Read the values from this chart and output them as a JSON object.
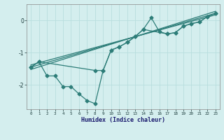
{
  "title": "",
  "xlabel": "Humidex (Indice chaleur)",
  "ylabel": "",
  "bg_color": "#d4eeee",
  "line_color": "#2d7d78",
  "grid_color": "#b8dede",
  "xlim": [
    -0.5,
    23.5
  ],
  "ylim": [
    -2.75,
    0.5
  ],
  "yticks": [
    -2,
    -1,
    0
  ],
  "xticks": [
    0,
    1,
    2,
    3,
    4,
    5,
    6,
    7,
    8,
    9,
    10,
    11,
    12,
    13,
    14,
    15,
    16,
    17,
    18,
    19,
    20,
    21,
    22,
    23
  ],
  "series1_x": [
    0,
    1,
    2,
    3,
    4,
    5,
    6,
    7,
    8,
    9,
    10,
    11,
    12,
    13,
    14,
    15,
    16,
    17,
    18,
    19,
    20,
    21,
    22,
    23
  ],
  "series1_y": [
    -1.45,
    -1.28,
    -1.72,
    -1.72,
    -2.05,
    -2.05,
    -2.28,
    -2.48,
    -2.58,
    -1.55,
    -0.92,
    -0.82,
    -0.68,
    -0.5,
    -0.28,
    0.08,
    -0.35,
    -0.42,
    -0.38,
    -0.18,
    -0.1,
    -0.05,
    0.12,
    0.22
  ],
  "series2_x": [
    0,
    1,
    8,
    9,
    10,
    11,
    12,
    13,
    14,
    17,
    18,
    19,
    20,
    21,
    22,
    23
  ],
  "series2_y": [
    -1.45,
    -1.28,
    -1.55,
    -1.55,
    -0.92,
    -0.82,
    -0.68,
    -0.5,
    -0.28,
    -0.42,
    -0.38,
    -0.18,
    -0.1,
    -0.05,
    0.12,
    0.22
  ],
  "trend1_x": [
    0,
    23
  ],
  "trend1_y": [
    -1.45,
    0.22
  ],
  "trend2_x": [
    0,
    23
  ],
  "trend2_y": [
    -1.38,
    0.17
  ],
  "trend3_x": [
    0,
    23
  ],
  "trend3_y": [
    -1.52,
    0.28
  ]
}
